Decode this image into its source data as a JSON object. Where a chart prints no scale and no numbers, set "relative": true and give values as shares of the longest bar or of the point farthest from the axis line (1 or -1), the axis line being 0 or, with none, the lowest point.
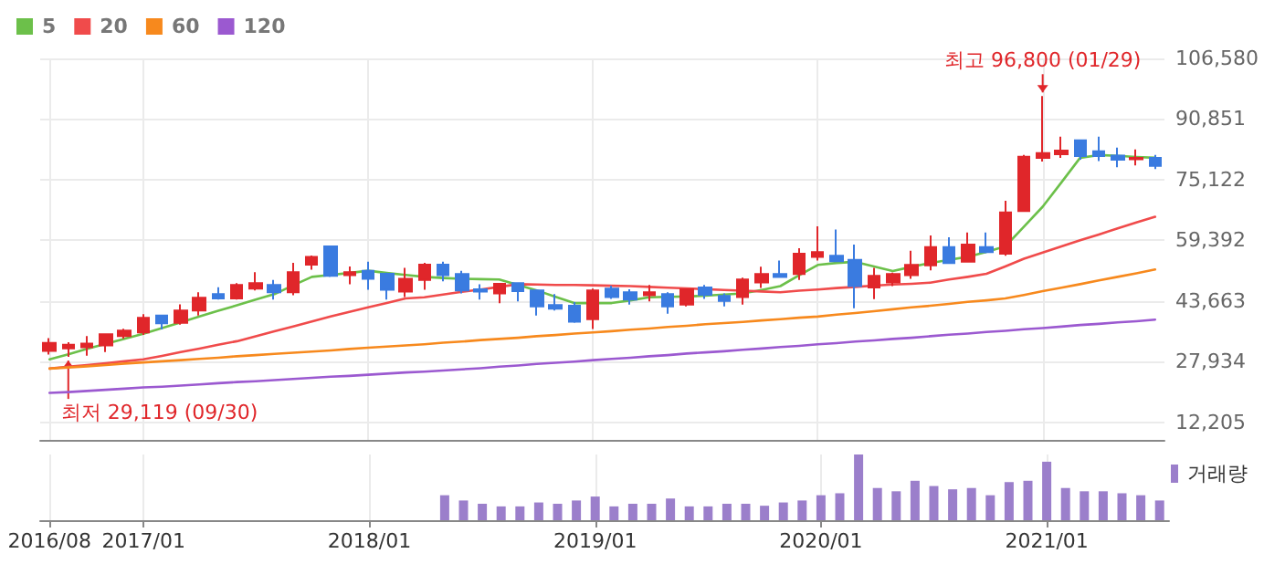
{
  "chart_data": [
    {
      "type": "candlestick",
      "categories": [
        "2016/08",
        null,
        null,
        null,
        null,
        "2017/01",
        null,
        null,
        null,
        null,
        null,
        null,
        null,
        null,
        null,
        null,
        null,
        "2018/01",
        null,
        null,
        null,
        null,
        null,
        null,
        null,
        null,
        null,
        null,
        null,
        "2019/01",
        null,
        null,
        null,
        null,
        null,
        null,
        null,
        null,
        null,
        null,
        null,
        "2020/01",
        null,
        null,
        null,
        null,
        null,
        null,
        null,
        null,
        null,
        null,
        null,
        "2021/01",
        null,
        null,
        null,
        null,
        null,
        null
      ],
      "ohlc": [
        [
          30710,
          34030,
          29760,
          32770
        ],
        [
          31340,
          32930,
          29119,
          32290
        ],
        [
          31660,
          34510,
          29440,
          32610
        ],
        [
          32130,
          35140,
          30390,
          34980
        ],
        [
          34510,
          36410,
          33870,
          35940
        ],
        [
          35460,
          40210,
          34830,
          39260
        ],
        [
          39890,
          39890,
          36250,
          37830
        ],
        [
          37990,
          42750,
          37520,
          41160
        ],
        [
          41160,
          45910,
          39890,
          44490
        ],
        [
          45440,
          47180,
          43990,
          44330
        ],
        [
          44330,
          48290,
          43990,
          47820
        ],
        [
          46860,
          51140,
          46390,
          48290
        ],
        [
          47820,
          49080,
          43990,
          45920
        ],
        [
          45920,
          53520,
          45120,
          51140
        ],
        [
          53040,
          55420,
          51770,
          55100
        ],
        [
          57790,
          57790,
          49870,
          50190
        ],
        [
          50350,
          52570,
          47980,
          51140
        ],
        [
          51460,
          53830,
          46550,
          49400
        ],
        [
          50670,
          50980,
          43990,
          46550
        ],
        [
          46070,
          52250,
          44650,
          49400
        ],
        [
          49080,
          53520,
          46550,
          53040
        ],
        [
          53040,
          53830,
          48770,
          50350
        ],
        [
          50650,
          51440,
          45580,
          46370
        ],
        [
          46690,
          47960,
          44000,
          46060
        ],
        [
          45580,
          48270,
          43050,
          48120
        ],
        [
          48270,
          48270,
          43520,
          46210
        ],
        [
          46370,
          46690,
          39880,
          42250
        ],
        [
          42570,
          45420,
          41150,
          41620
        ],
        [
          42410,
          43360,
          37980,
          38290
        ],
        [
          38930,
          46850,
          36390,
          46370
        ],
        [
          46850,
          47640,
          44160,
          44630
        ],
        [
          45900,
          46690,
          42730,
          44010
        ],
        [
          45110,
          47800,
          43520,
          45900
        ],
        [
          45420,
          45900,
          40350,
          42250
        ],
        [
          42730,
          46850,
          42250,
          46690
        ],
        [
          47160,
          47800,
          44160,
          45260
        ],
        [
          44950,
          45580,
          42250,
          43680
        ],
        [
          44630,
          49700,
          42730,
          49220
        ],
        [
          48430,
          52550,
          47010,
          50650
        ],
        [
          50650,
          54130,
          49860,
          49860
        ],
        [
          50650,
          57300,
          49070,
          55880
        ],
        [
          55080,
          63000,
          54130,
          56350
        ],
        [
          55400,
          62210,
          53820,
          53980
        ],
        [
          54290,
          58250,
          41780,
          47480
        ],
        [
          47160,
          52230,
          44110,
          50170
        ],
        [
          48430,
          50970,
          47480,
          50650
        ],
        [
          50330,
          56670,
          49380,
          53030
        ],
        [
          52870,
          60630,
          51600,
          57620
        ],
        [
          57620,
          60150,
          53500,
          53500
        ],
        [
          53820,
          61420,
          53820,
          58250
        ],
        [
          57620,
          61420,
          56030,
          56350
        ],
        [
          55880,
          69660,
          55400,
          66650
        ],
        [
          66970,
          81540,
          66970,
          81060
        ],
        [
          80750,
          96800,
          79800,
          82010
        ],
        [
          81700,
          86290,
          80750,
          82650
        ],
        [
          85340,
          85340,
          80270,
          81220
        ],
        [
          82490,
          86290,
          79950,
          81220
        ],
        [
          81380,
          83440,
          78370,
          80270
        ],
        [
          80430,
          82960,
          78840,
          80750
        ],
        [
          80750,
          81540,
          77890,
          78690
        ]
      ],
      "colors": [
        "#e0262a",
        "#e0262a",
        "#e0262a",
        "#e0262a",
        "#e0262a",
        "#e0262a",
        "#3a7be0",
        "#e0262a",
        "#e0262a",
        "#3a7be0",
        "#e0262a",
        "#e0262a",
        "#3a7be0",
        "#e0262a",
        "#e0262a",
        "#3a7be0",
        "#e0262a",
        "#3a7be0",
        "#3a7be0",
        "#e0262a",
        "#e0262a",
        "#3a7be0",
        "#3a7be0",
        "#3a7be0",
        "#e0262a",
        "#3a7be0",
        "#3a7be0",
        "#3a7be0",
        "#3a7be0",
        "#e0262a",
        "#3a7be0",
        "#3a7be0",
        "#e0262a",
        "#3a7be0",
        "#e0262a",
        "#3a7be0",
        "#3a7be0",
        "#e0262a",
        "#e0262a",
        "#3a7be0",
        "#e0262a",
        "#e0262a",
        "#3a7be0",
        "#3a7be0",
        "#e0262a",
        "#e0262a",
        "#e0262a",
        "#e0262a",
        "#3a7be0",
        "#e0262a",
        "#3a7be0",
        "#e0262a",
        "#e0262a",
        "#e0262a",
        "#e0262a",
        "#3a7be0",
        "#3a7be0",
        "#3a7be0",
        "#e0262a",
        "#3a7be0"
      ],
      "series": [
        {
          "type": "line",
          "name": "5",
          "color": "#6cc04a",
          "values": [
            28500,
            29800,
            31200,
            32500,
            33800,
            35100,
            36600,
            38100,
            39600,
            41100,
            42500,
            44000,
            45400,
            47700,
            49900,
            50400,
            50900,
            51500,
            50900,
            50400,
            49900,
            49600,
            49400,
            49300,
            49200,
            47800,
            46400,
            44700,
            43100,
            43100,
            43100,
            43800,
            44600,
            44700,
            44800,
            45000,
            45300,
            45600,
            46500,
            47500,
            50300,
            53000,
            53500,
            53800,
            52600,
            51400,
            52500,
            53500,
            54300,
            55100,
            56400,
            57800,
            62900,
            68100,
            74400,
            80800,
            81500,
            81300,
            81000,
            80800
          ]
        },
        {
          "type": "line",
          "name": "20",
          "color": "#f04b4b",
          "values": [
            26100,
            26600,
            27000,
            27500,
            28000,
            28500,
            29400,
            30400,
            31300,
            32300,
            33200,
            34500,
            35800,
            37000,
            38300,
            39600,
            40800,
            42000,
            43100,
            44300,
            44600,
            45300,
            46000,
            46600,
            47300,
            48000,
            47900,
            47800,
            47800,
            47700,
            47600,
            47500,
            47300,
            47100,
            46900,
            46700,
            46500,
            46300,
            46100,
            45900,
            46300,
            46600,
            47000,
            47300,
            47600,
            47900,
            48100,
            48400,
            49200,
            49900,
            50700,
            52600,
            54600,
            56200,
            57800,
            59400,
            60900,
            62500,
            64000,
            65500
          ]
        },
        {
          "type": "line",
          "name": "60",
          "color": "#f7891d",
          "values": [
            26100,
            26400,
            26700,
            27000,
            27400,
            27700,
            28000,
            28300,
            28600,
            28900,
            29300,
            29600,
            29900,
            30200,
            30500,
            30800,
            31200,
            31500,
            31800,
            32100,
            32400,
            32800,
            33100,
            33500,
            33800,
            34100,
            34500,
            34800,
            35200,
            35500,
            35800,
            36200,
            36500,
            36900,
            37200,
            37600,
            37900,
            38200,
            38600,
            38900,
            39300,
            39600,
            40100,
            40500,
            41000,
            41500,
            42000,
            42400,
            42900,
            43400,
            43800,
            44300,
            45200,
            46200,
            47100,
            48000,
            49000,
            49900,
            50800,
            51800
          ]
        },
        {
          "type": "line",
          "name": "120",
          "color": "#9b59d0",
          "values": [
            19800,
            20000,
            20300,
            20600,
            20900,
            21200,
            21400,
            21700,
            22000,
            22300,
            22600,
            22800,
            23100,
            23400,
            23700,
            24000,
            24200,
            24500,
            24800,
            25100,
            25300,
            25600,
            25900,
            26200,
            26600,
            26900,
            27300,
            27600,
            27900,
            28300,
            28600,
            28900,
            29300,
            29600,
            30000,
            30300,
            30600,
            31000,
            31300,
            31700,
            32000,
            32400,
            32700,
            33100,
            33400,
            33800,
            34100,
            34500,
            34900,
            35200,
            35600,
            35900,
            36300,
            36600,
            37000,
            37400,
            37700,
            38100,
            38400,
            38800
          ]
        }
      ],
      "ylim": [
        7600,
        106580
      ],
      "yticks": [
        {
          "value": 12205,
          "label": "12,205"
        },
        {
          "value": 27934,
          "label": "27,934"
        },
        {
          "value": 43663,
          "label": "43,663"
        },
        {
          "value": 59392,
          "label": "59,392"
        },
        {
          "value": 75122,
          "label": "75,122"
        },
        {
          "value": 90851,
          "label": "90,851"
        },
        {
          "value": 106580,
          "label": "106,580"
        }
      ],
      "grid": true,
      "legend": "top left",
      "tick_labels": "y",
      "marker": "none",
      "line_style": "solid",
      "annotations": [
        {
          "text": "최고 96,800 (01/29)",
          "x": "2021/01",
          "y": 96800
        },
        {
          "text": "최저 29,119 (09/30)",
          "y": 29119
        }
      ]
    },
    {
      "type": "bar",
      "categories": [
        "2016/08",
        null,
        null,
        null,
        null,
        "2017/01",
        null,
        null,
        null,
        null,
        null,
        null,
        null,
        null,
        null,
        null,
        null,
        "2018/01",
        null,
        null,
        null,
        null,
        null,
        null,
        null,
        null,
        null,
        null,
        null,
        "2019/01",
        null,
        null,
        null,
        null,
        null,
        null,
        null,
        null,
        null,
        null,
        null,
        "2020/01",
        null,
        null,
        null,
        null,
        null,
        null,
        null,
        null,
        null,
        null,
        null,
        "2021/01",
        null,
        null,
        null,
        null,
        null,
        null
      ],
      "series": [
        {
          "name": "거래량",
          "color": "#9b7fcb",
          "values": [
            null,
            null,
            null,
            null,
            null,
            null,
            null,
            null,
            null,
            null,
            null,
            null,
            null,
            null,
            null,
            null,
            null,
            null,
            null,
            null,
            null,
            0.38,
            0.3,
            0.25,
            0.21,
            0.21,
            0.27,
            0.25,
            0.3,
            0.36,
            0.21,
            0.25,
            0.25,
            0.33,
            0.21,
            0.21,
            0.25,
            0.25,
            0.22,
            0.27,
            0.3,
            0.38,
            0.41,
            1,
            0.49,
            0.44,
            0.6,
            0.52,
            0.47,
            0.49,
            0.38,
            0.58,
            0.6,
            0.89,
            0.49,
            0.44,
            0.44,
            0.41,
            0.38,
            0.3
          ]
        }
      ],
      "relative": true,
      "legend": "top right",
      "tick_labels": "x",
      "grid": "x"
    }
  ]
}
